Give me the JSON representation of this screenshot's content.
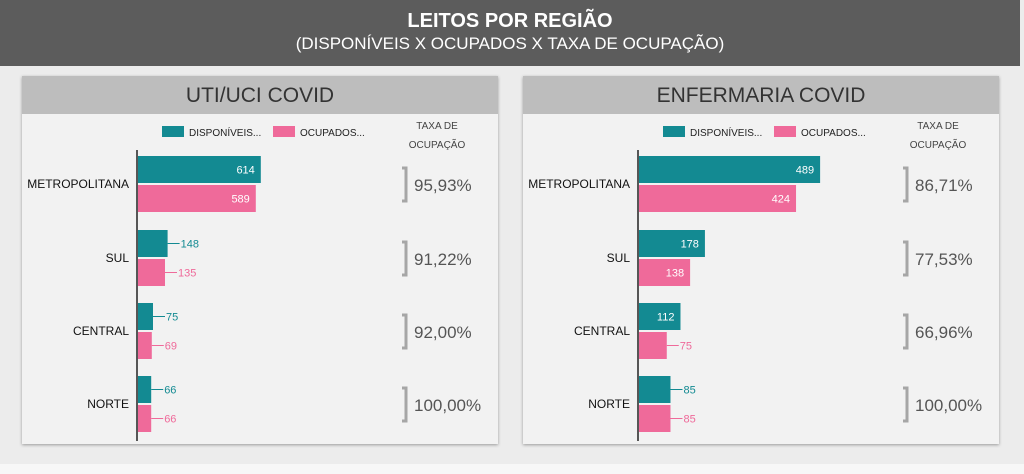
{
  "header": {
    "title": "LEITOS POR REGIÃO",
    "subtitle": "(DISPONÍVEIS X OCUPADOS X TAXA DE OCUPAÇÃO)"
  },
  "colors": {
    "available": "#138a92",
    "occupied": "#ef6a9a",
    "bracket": "#a6a6a6",
    "rate_text": "#555555"
  },
  "chart_data": [
    {
      "type": "bar",
      "title": "UTI/UCI COVID",
      "categories": [
        "METROPOLITANA",
        "SUL",
        "CENTRAL",
        "NORTE"
      ],
      "series": [
        {
          "name": "DISPONÍVEIS...",
          "values": [
            614,
            148,
            75,
            66
          ]
        },
        {
          "name": "OCUPADOS...",
          "values": [
            589,
            135,
            69,
            66
          ]
        }
      ],
      "rate_header": [
        "TAXA DE",
        "OCUPAÇÃO"
      ],
      "rates": [
        "95,93%",
        "91,22%",
        "92,00%",
        "100,00%"
      ],
      "xlim": [
        0,
        1000
      ],
      "legend": "top"
    },
    {
      "type": "bar",
      "title": "ENFERMARIA COVID",
      "categories": [
        "METROPOLITANA",
        "SUL",
        "CENTRAL",
        "NORTE"
      ],
      "series": [
        {
          "name": "DISPONÍVEIS...",
          "values": [
            489,
            178,
            112,
            85
          ]
        },
        {
          "name": "OCUPADOS...",
          "values": [
            424,
            138,
            75,
            85
          ]
        }
      ],
      "rate_header": [
        "TAXA DE",
        "OCUPAÇÃO"
      ],
      "rates": [
        "86,71%",
        "77,53%",
        "66,96%",
        "100,00%"
      ],
      "xlim": [
        0,
        540
      ],
      "legend": "top"
    }
  ]
}
